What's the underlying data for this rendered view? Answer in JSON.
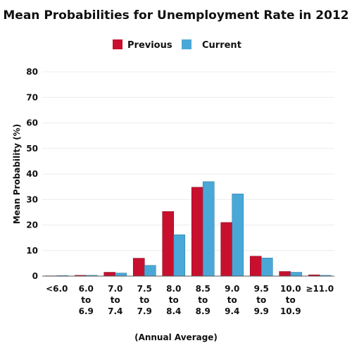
{
  "chart_data": {
    "type": "bar",
    "title": "Mean Probabilities for Unemployment Rate in 2012",
    "xlabel": "(Annual Average)",
    "ylabel": "Mean Probability (%)",
    "ylim": [
      0,
      80
    ],
    "yticks": [
      "0",
      "10",
      "20",
      "30",
      "40",
      "50",
      "60",
      "70",
      "80"
    ],
    "grid": true,
    "legend_position": "top",
    "categories": [
      [
        "<6.0"
      ],
      [
        "6.0",
        "to",
        "6.9"
      ],
      [
        "7.0",
        "to",
        "7.4"
      ],
      [
        "7.5",
        "to",
        "7.9"
      ],
      [
        "8.0",
        "to",
        "8.4"
      ],
      [
        "8.5",
        "to",
        "8.9"
      ],
      [
        "9.0",
        "to",
        "9.4"
      ],
      [
        "9.5",
        "to",
        "9.9"
      ],
      [
        "10.0",
        "to",
        "10.9"
      ],
      [
        "≥11.0"
      ]
    ],
    "series": [
      {
        "name": "Previous",
        "color": "#c8102e",
        "values": [
          0.1,
          0.3,
          1.5,
          7.0,
          25.3,
          34.8,
          21.0,
          7.8,
          1.8,
          0.5
        ]
      },
      {
        "name": "Current",
        "color": "#4aa8d8",
        "values": [
          0.2,
          0.3,
          1.2,
          4.2,
          16.2,
          37.0,
          32.2,
          7.1,
          1.5,
          0.3
        ]
      }
    ]
  }
}
